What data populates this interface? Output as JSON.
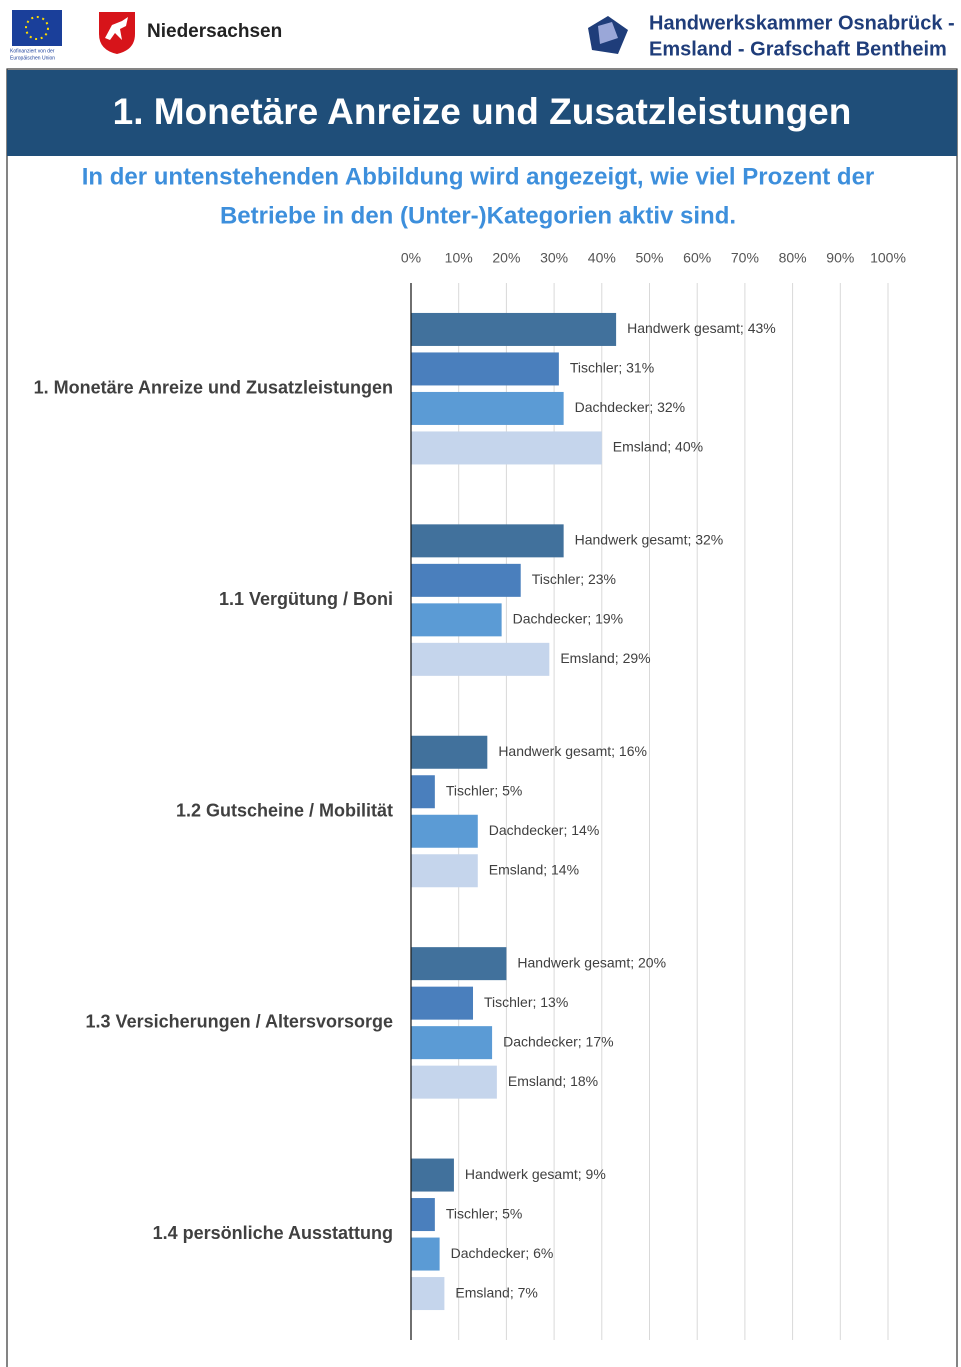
{
  "header": {
    "eu_caption": [
      "Kofinanziert von der",
      "Europäischen Union"
    ],
    "state": "Niedersachsen",
    "chamber_lines": [
      "Handwerkskammer Osnabrück -",
      "Emsland - Grafschaft Bentheim"
    ]
  },
  "title": "1. Monetäre Anreize und Zusatzleistungen",
  "subtitle_lines": [
    "In der untenstehenden Abbildung wird angezeigt, wie viel Prozent der",
    "Betriebe in den (Unter-)Kategorien aktiv sind."
  ],
  "chart_data": {
    "type": "hbar",
    "categories": [
      "1. Monetäre Anreize und Zusatzleistungen",
      "1.1 Vergütung / Boni",
      "1.2 Gutscheine / Mobilität",
      "1.3 Versicherungen / Altersvorsorge",
      "1.4 persönliche Ausstattung"
    ],
    "series": [
      {
        "name": "Handwerk gesamt",
        "color": "#41719c",
        "values": [
          43,
          32,
          16,
          20,
          9
        ],
        "value_labels": [
          "Handwerk gesamt; 43%",
          "Handwerk gesamt; 32%",
          "Handwerk gesamt; 16%",
          "Handwerk gesamt; 20%",
          "Handwerk gesamt; 9%"
        ]
      },
      {
        "name": "Tischler",
        "color": "#4a7fbd",
        "values": [
          31,
          23,
          5,
          13,
          5
        ],
        "value_labels": [
          "Tischler; 31%",
          "Tischler; 23%",
          "Tischler; 5%",
          "Tischler; 13%",
          "Tischler; 5%"
        ]
      },
      {
        "name": "Dachdecker",
        "color": "#5b9bd5",
        "values": [
          32,
          19,
          14,
          17,
          6
        ],
        "value_labels": [
          "Dachdecker; 32%",
          "Dachdecker; 19%",
          "Dachdecker; 14%",
          "Dachdecker; 17%",
          "Dachdecker; 6%"
        ]
      },
      {
        "name": "Emsland",
        "color": "#c5d5ec",
        "values": [
          40,
          29,
          14,
          18,
          7
        ],
        "value_labels": [
          "Emsland; 40%",
          "Emsland; 29%",
          "Emsland; 14%",
          "Emsland; 18%",
          "Emsland; 7%"
        ]
      }
    ],
    "xlim": [
      0,
      100
    ],
    "xticks": [
      {
        "value": 0,
        "label": "0%"
      },
      {
        "value": 10,
        "label": "10%"
      },
      {
        "value": 20,
        "label": "20%"
      },
      {
        "value": 30,
        "label": "30%"
      },
      {
        "value": 40,
        "label": "40%"
      },
      {
        "value": 50,
        "label": "50%"
      },
      {
        "value": 60,
        "label": "60%"
      },
      {
        "value": 70,
        "label": "70%"
      },
      {
        "value": 80,
        "label": "80%"
      },
      {
        "value": 90,
        "label": "90%"
      },
      {
        "value": 100,
        "label": "100%"
      }
    ],
    "grid": true
  }
}
